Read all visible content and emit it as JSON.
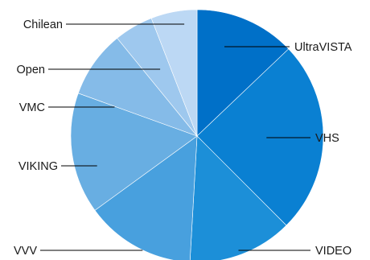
{
  "chart_data": {
    "type": "pie",
    "title": "",
    "start_angle_deg": 0,
    "direction": "clockwise",
    "legend": "none",
    "slices": [
      {
        "label": "UltraVISTA",
        "value": 12.9,
        "color": "#0070c8"
      },
      {
        "label": "VHS",
        "value": 24.6,
        "color": "#0a80d2"
      },
      {
        "label": "VIDEO",
        "value": 13.4,
        "color": "#1c8fd8"
      },
      {
        "label": "VVV",
        "value": 14.1,
        "color": "#48a0de"
      },
      {
        "label": "VIKING",
        "value": 15.5,
        "color": "#68aee2"
      },
      {
        "label": "VMC",
        "value": 8.6,
        "color": "#85bbe8"
      },
      {
        "label": "Open",
        "value": 5.0,
        "color": "#9ec8ee"
      },
      {
        "label": "Chilean",
        "value": 5.9,
        "color": "#bcd8f4"
      }
    ]
  }
}
